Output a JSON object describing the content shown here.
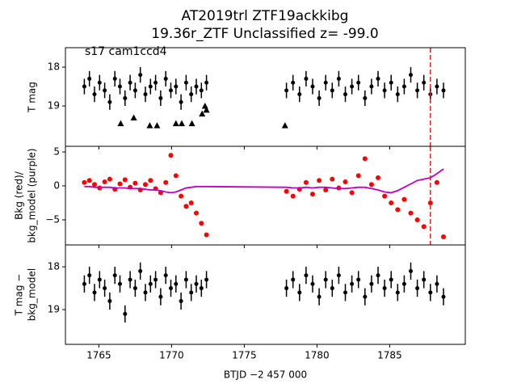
{
  "chart_data": [
    {
      "type": "errorbar",
      "title": [
        "AT2019trl  ZTF19ackkibg",
        "19.36r_ZTF Unclassified z= -99.0"
      ],
      "annotation": "s17 cam1ccd4",
      "ylabel": [
        "T mag"
      ],
      "color": "#000000",
      "x": [
        1764.0,
        1764.35,
        1764.7,
        1765.05,
        1765.4,
        1765.75,
        1766.1,
        1766.45,
        1766.8,
        1767.15,
        1767.5,
        1767.85,
        1768.2,
        1768.55,
        1768.9,
        1769.25,
        1769.6,
        1769.95,
        1770.3,
        1770.65,
        1771.0,
        1771.35,
        1771.7,
        1772.05,
        1772.4,
        1777.9,
        1778.35,
        1778.8,
        1779.25,
        1779.7,
        1780.15,
        1780.6,
        1781.05,
        1781.5,
        1781.95,
        1782.4,
        1782.85,
        1783.3,
        1783.75,
        1784.2,
        1784.65,
        1785.1,
        1785.55,
        1786.0,
        1786.45,
        1786.9,
        1787.35,
        1787.8,
        1788.25,
        1788.7
      ],
      "values": [
        18.5,
        18.3,
        18.7,
        18.4,
        18.6,
        18.9,
        18.3,
        18.5,
        18.8,
        18.4,
        18.6,
        18.2,
        18.7,
        18.5,
        18.4,
        18.8,
        18.3,
        18.6,
        18.5,
        18.9,
        18.4,
        18.7,
        18.5,
        18.6,
        18.4,
        18.6,
        18.4,
        18.7,
        18.3,
        18.5,
        18.8,
        18.4,
        18.6,
        18.3,
        18.7,
        18.5,
        18.4,
        18.8,
        18.5,
        18.3,
        18.6,
        18.4,
        18.7,
        18.5,
        18.2,
        18.6,
        18.4,
        18.7,
        18.5,
        18.6
      ],
      "error": 0.2,
      "limit_x": [
        1766.5,
        1767.4,
        1768.5,
        1769.0,
        1770.3,
        1770.7,
        1771.4,
        1772.1,
        1772.3,
        1772.4,
        1777.8
      ],
      "limit_values": [
        19.45,
        19.3,
        19.5,
        19.5,
        19.45,
        19.45,
        19.45,
        19.2,
        19.0,
        19.1,
        19.5
      ],
      "vline": 1787.8,
      "vline_color": "#d62728",
      "xlim": [
        1762.7,
        1790.2
      ],
      "xticks": [
        1765,
        1770,
        1775,
        1780,
        1785
      ],
      "ylim": [
        20.04,
        17.5
      ],
      "yticks": [
        18,
        19
      ]
    },
    {
      "type": "scatter",
      "ylabel": [
        "Bkg (red)/",
        "bkg_model (purple)"
      ],
      "color": "#ff0000",
      "model_color": "#bf00bf",
      "x": [
        1764.0,
        1764.35,
        1764.7,
        1765.05,
        1765.4,
        1765.75,
        1766.1,
        1766.45,
        1766.8,
        1767.15,
        1767.5,
        1767.85,
        1768.2,
        1768.55,
        1768.9,
        1769.25,
        1769.6,
        1769.95,
        1770.3,
        1770.65,
        1771.0,
        1771.35,
        1771.7,
        1772.05,
        1772.4,
        1777.9,
        1778.35,
        1778.8,
        1779.25,
        1779.7,
        1780.15,
        1780.6,
        1781.05,
        1781.5,
        1781.95,
        1782.4,
        1782.85,
        1783.3,
        1783.75,
        1784.2,
        1784.65,
        1785.1,
        1785.55,
        1786.0,
        1786.45,
        1786.9,
        1787.35,
        1787.8,
        1788.25,
        1788.7
      ],
      "values": [
        0.5,
        0.8,
        0.2,
        -0.3,
        0.6,
        1.0,
        -0.5,
        0.3,
        0.9,
        -0.2,
        0.4,
        -0.6,
        0.2,
        0.8,
        -0.4,
        -1.0,
        0.5,
        4.5,
        1.5,
        -1.5,
        -3.0,
        -2.5,
        -4.0,
        -5.5,
        -7.2,
        -0.8,
        -1.5,
        -0.5,
        0.5,
        -1.2,
        0.8,
        -0.6,
        1.0,
        -0.3,
        0.6,
        -1.0,
        1.5,
        4.0,
        0.2,
        1.2,
        -1.5,
        -2.5,
        -3.5,
        -2.0,
        -4.0,
        -5.0,
        -6.0,
        -2.5,
        0.5,
        -7.5
      ],
      "model": [
        -0.1,
        -0.1,
        -0.2,
        -0.2,
        -0.2,
        -0.2,
        -0.3,
        -0.3,
        -0.3,
        -0.4,
        -0.4,
        -0.4,
        -0.5,
        -0.6,
        -0.6,
        -0.7,
        -0.9,
        -1.0,
        -0.9,
        -0.6,
        -0.3,
        -0.2,
        -0.1,
        -0.1,
        -0.1,
        -0.2,
        -0.3,
        -0.3,
        -0.2,
        -0.3,
        -0.2,
        -0.2,
        -0.3,
        -0.4,
        -0.4,
        -0.3,
        -0.2,
        -0.2,
        -0.4,
        -0.6,
        -0.9,
        -1.0,
        -0.7,
        -0.2,
        0.3,
        0.8,
        1.0,
        1.2,
        1.8,
        2.5
      ],
      "vline": 1787.8,
      "vline_color": "#d62728",
      "xlim": [
        1762.7,
        1790.2
      ],
      "xticks": [
        1765,
        1770,
        1775,
        1780,
        1785
      ],
      "ylim": [
        -8.69,
        5.83
      ],
      "yticks": [
        {
          "value": -5,
          "label": "−5"
        },
        0,
        5
      ]
    },
    {
      "type": "errorbar",
      "ylabel": [
        "T mag −",
        "bkg_model"
      ],
      "xlabel": "BTJD −2 457 000",
      "color": "#000000",
      "x": [
        1764.0,
        1764.35,
        1764.7,
        1765.05,
        1765.4,
        1765.75,
        1766.1,
        1766.45,
        1766.8,
        1767.15,
        1767.5,
        1767.85,
        1768.2,
        1768.55,
        1768.9,
        1769.25,
        1769.6,
        1769.95,
        1770.3,
        1770.65,
        1771.0,
        1771.35,
        1771.7,
        1772.05,
        1772.4,
        1777.9,
        1778.35,
        1778.8,
        1779.25,
        1779.7,
        1780.15,
        1780.6,
        1781.05,
        1781.5,
        1781.95,
        1782.4,
        1782.85,
        1783.3,
        1783.75,
        1784.2,
        1784.65,
        1785.1,
        1785.55,
        1786.0,
        1786.45,
        1786.9,
        1787.35,
        1787.8,
        1788.25,
        1788.7
      ],
      "values": [
        18.4,
        18.2,
        18.6,
        18.3,
        18.5,
        18.8,
        18.2,
        18.4,
        19.1,
        18.3,
        18.5,
        18.1,
        18.6,
        18.4,
        18.3,
        18.7,
        18.2,
        18.5,
        18.4,
        18.8,
        18.3,
        18.6,
        18.4,
        18.5,
        18.3,
        18.5,
        18.3,
        18.6,
        18.2,
        18.4,
        18.7,
        18.3,
        18.5,
        18.2,
        18.6,
        18.4,
        18.3,
        18.7,
        18.4,
        18.2,
        18.5,
        18.3,
        18.6,
        18.4,
        18.1,
        18.5,
        18.3,
        18.6,
        18.4,
        18.7
      ],
      "error": 0.2,
      "xlim": [
        1762.7,
        1790.2
      ],
      "xticks": [
        1765,
        1770,
        1775,
        1780,
        1785
      ],
      "ylim": [
        19.81,
        17.49
      ],
      "yticks": [
        18,
        19
      ]
    }
  ]
}
